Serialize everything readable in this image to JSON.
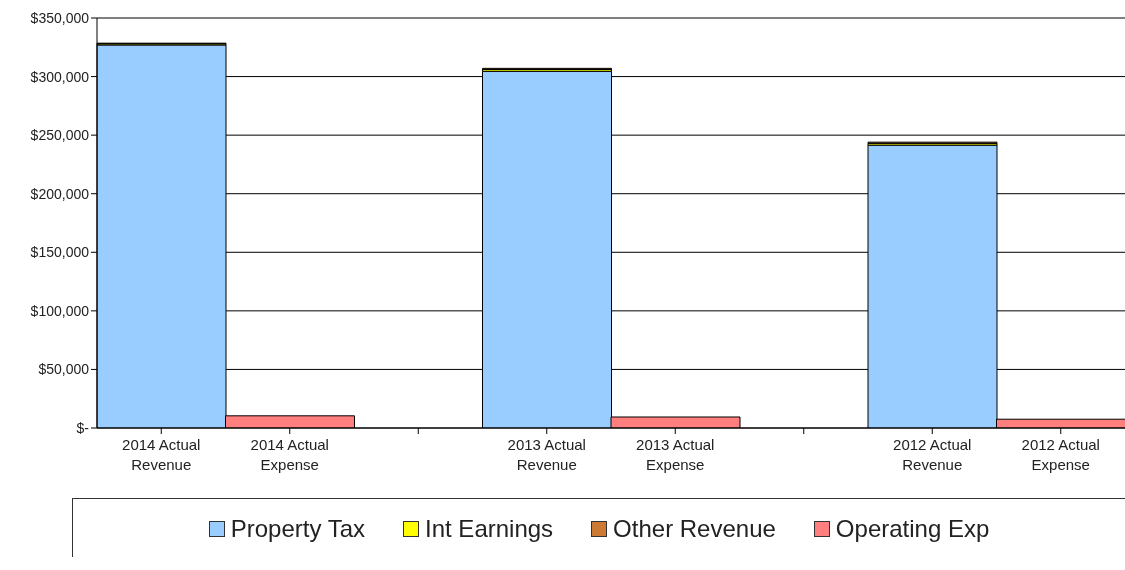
{
  "chart_data": {
    "type": "bar",
    "stacked": true,
    "categories": [
      "2014 Actual Revenue",
      "2014 Actual Expense",
      null,
      "2013 Actual Revenue",
      "2013 Actual Expense",
      null,
      "2012 Actual Revenue",
      "2012 Actual Expense"
    ],
    "series": [
      {
        "name": "Property Tax",
        "color": "#99ccff",
        "values": [
          327000,
          null,
          null,
          304500,
          null,
          null,
          241500,
          null
        ]
      },
      {
        "name": "Int Earnings",
        "color": "#ffff00",
        "values": [
          1000,
          null,
          null,
          1500,
          null,
          null,
          1500,
          null
        ]
      },
      {
        "name": "Other Revenue",
        "color": "#cc7a33",
        "values": [
          500,
          null,
          null,
          1000,
          null,
          null,
          1000,
          null
        ]
      },
      {
        "name": "Operating Exp",
        "color": "#ff7f7f",
        "values": [
          null,
          10400,
          null,
          null,
          9400,
          null,
          null,
          7500
        ]
      }
    ],
    "ylim": [
      0,
      350000
    ],
    "yticks": [
      {
        "value": 0,
        "label": "$-"
      },
      {
        "value": 50000,
        "label": "$50,000"
      },
      {
        "value": 100000,
        "label": "$100,000"
      },
      {
        "value": 150000,
        "label": "$150,000"
      },
      {
        "value": 200000,
        "label": "$200,000"
      },
      {
        "value": 250000,
        "label": "$250,000"
      },
      {
        "value": 300000,
        "label": "$300,000"
      },
      {
        "value": 350000,
        "label": "$350,000"
      }
    ],
    "grid": "y",
    "legend": "bottom"
  }
}
